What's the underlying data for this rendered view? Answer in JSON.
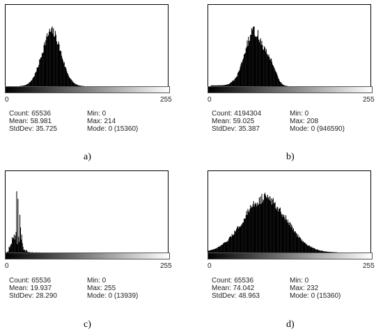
{
  "chart_data": [
    {
      "type": "bar",
      "caption": "a)",
      "x_min": 0,
      "x_max": 255,
      "tick_labels": [
        "0",
        "255"
      ],
      "peak_center": 72,
      "peak_width": 15,
      "stats": {
        "count": "Count: 65536",
        "mean": "Mean: 58.981",
        "stddev": "StdDev: 35.725",
        "min": "Min: 0",
        "max": "Max: 214",
        "mode": "Mode: 0 (15360)"
      }
    },
    {
      "type": "bar",
      "caption": "b)",
      "x_min": 0,
      "x_max": 255,
      "tick_labels": [
        "0",
        "255"
      ],
      "peak_center": 72,
      "peak_width": 15,
      "stats": {
        "count": "Count: 4194304",
        "mean": "Mean: 59.025",
        "stddev": "StdDev: 35.387",
        "min": "Min: 0",
        "max": "Max: 208",
        "mode": "Mode: 0 (946590)"
      }
    },
    {
      "type": "bar",
      "caption": "c)",
      "x_min": 0,
      "x_max": 255,
      "tick_labels": [
        "0",
        "255"
      ],
      "peak_center": 18,
      "peak_width": 6,
      "stats": {
        "count": "Count: 65536",
        "mean": "Mean: 19.937",
        "stddev": "StdDev: 28.290",
        "min": "Min: 0",
        "max": "Max: 255",
        "mode": "Mode: 0 (13939)"
      }
    },
    {
      "type": "bar",
      "caption": "d)",
      "x_min": 0,
      "x_max": 255,
      "tick_labels": [
        "0",
        "255"
      ],
      "peak_center": 89,
      "peak_width": 34,
      "stats": {
        "count": "Count: 65536",
        "mean": "Mean: 74.042",
        "stddev": "StdDev: 48.963",
        "min": "Min: 0",
        "max": "Max: 232",
        "mode": "Mode: 0 (15360)"
      }
    }
  ]
}
